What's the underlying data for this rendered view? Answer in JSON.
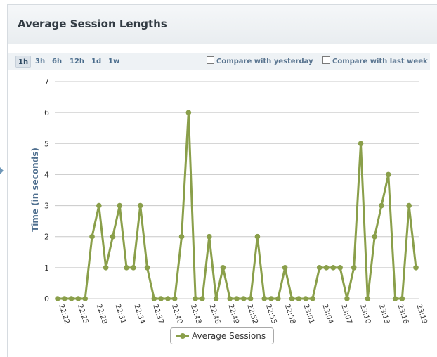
{
  "panel": {
    "title": "Average Session Lengths"
  },
  "toolbar": {
    "ranges": [
      "1h",
      "3h",
      "6h",
      "12h",
      "1d",
      "1w"
    ],
    "active_range": "1h",
    "compare_yesterday": "Compare with yesterday",
    "compare_last_week": "Compare with last week"
  },
  "colors": {
    "series": "#8a9f4a",
    "grid": "#c8c8c8",
    "axis_label": "#4f6f8f"
  },
  "chart_data": {
    "type": "line",
    "title": "",
    "xlabel": "",
    "ylabel": "Time (in seconds)",
    "ylim": [
      0,
      7
    ],
    "yticks": [
      0,
      1,
      2,
      3,
      4,
      5,
      6,
      7
    ],
    "grid": true,
    "legend_position": "bottom-center",
    "x_tick_labels": [
      "22:22",
      "22:25",
      "22:28",
      "22:31",
      "22:34",
      "22:37",
      "22:40",
      "22:43",
      "22:46",
      "22:49",
      "22:52",
      "22:55",
      "22:58",
      "23:01",
      "23:04",
      "23:07",
      "23:10",
      "23:13",
      "23:16",
      "23:19"
    ],
    "series": [
      {
        "name": "Average Sessions",
        "values": [
          0,
          0,
          0,
          0,
          0,
          2,
          3,
          1,
          2,
          3,
          1,
          1,
          3,
          1,
          0,
          0,
          0,
          0,
          2,
          6,
          0,
          0,
          2,
          0,
          1,
          0,
          0,
          0,
          0,
          2,
          0,
          0,
          0,
          1,
          0,
          0,
          0,
          0,
          1,
          1,
          1,
          1,
          0,
          1,
          5,
          0,
          2,
          3,
          4,
          0,
          0,
          3,
          1
        ]
      }
    ]
  }
}
